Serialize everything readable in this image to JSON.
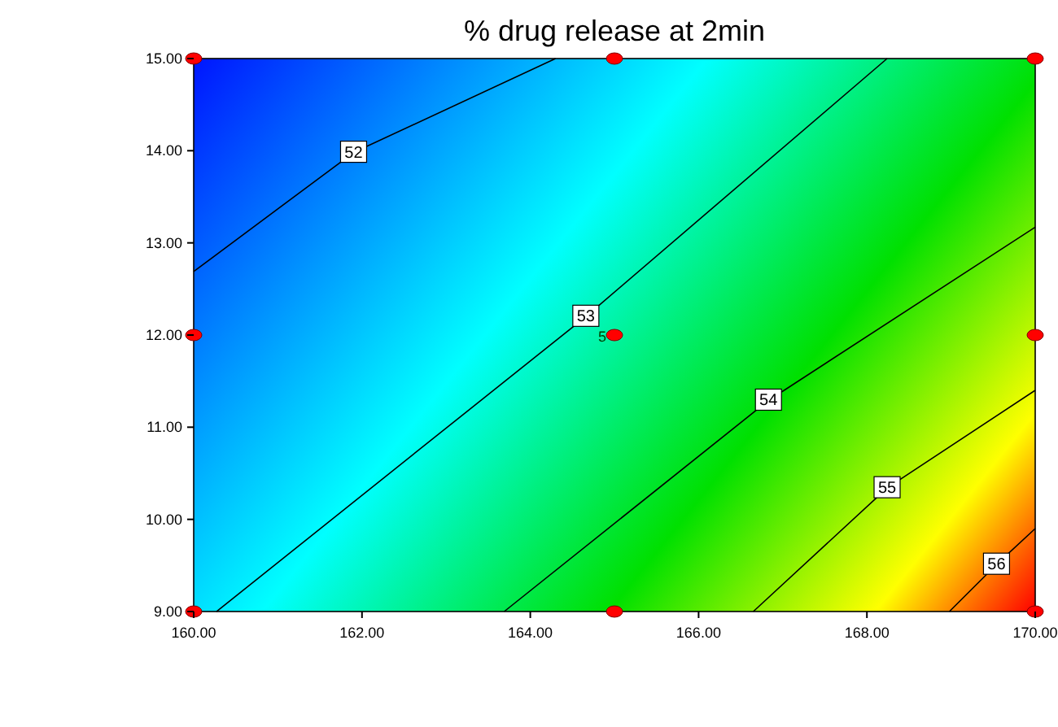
{
  "chart_data": {
    "type": "line",
    "title": "% drug release at 2min",
    "xlim": [
      160,
      170
    ],
    "ylim": [
      9,
      15
    ],
    "xticks": [
      {
        "value": 160,
        "label": "160.00"
      },
      {
        "value": 162,
        "label": "162.00"
      },
      {
        "value": 164,
        "label": "164.00"
      },
      {
        "value": 166,
        "label": "166.00"
      },
      {
        "value": 168,
        "label": "168.00"
      },
      {
        "value": 170,
        "label": "170.00"
      }
    ],
    "yticks": [
      {
        "value": 9,
        "label": "9.00"
      },
      {
        "value": 10,
        "label": "10.00"
      },
      {
        "value": 11,
        "label": "11.00"
      },
      {
        "value": 12,
        "label": "12.00"
      },
      {
        "value": 13,
        "label": "13.00"
      },
      {
        "value": 14,
        "label": "14.00"
      },
      {
        "value": 15,
        "label": "15.00"
      }
    ],
    "grid": false,
    "line_style": "solid",
    "series": [
      {
        "name": "52",
        "color": "#000000",
        "x": [
          160,
          161.9,
          164.3
        ],
        "values": [
          12.69,
          13.98,
          15
        ]
      },
      {
        "name": "53",
        "color": "#000000",
        "x": [
          160.27,
          164.66,
          168.24
        ],
        "values": [
          9,
          12.2,
          15
        ]
      },
      {
        "name": "54",
        "color": "#000000",
        "x": [
          163.69,
          166.83,
          170
        ],
        "values": [
          9,
          11.29,
          13.17
        ]
      },
      {
        "name": "55",
        "color": "#000000",
        "x": [
          166.65,
          168.24,
          170
        ],
        "values": [
          9,
          10.34,
          11.4
        ]
      },
      {
        "name": "56",
        "color": "#000000",
        "x": [
          168.98,
          169.54,
          170
        ],
        "values": [
          9,
          9.51,
          9.9
        ]
      },
      {
        "type": "scatter",
        "marker": "circle",
        "color": "#ff0000",
        "x": [
          160,
          160,
          160,
          165,
          165,
          165,
          170,
          170,
          170
        ],
        "values": [
          9,
          12,
          15,
          9,
          12,
          15,
          9,
          12,
          15
        ]
      }
    ],
    "annotations": [
      {
        "text": "5",
        "x": 165,
        "y": 12
      }
    ]
  }
}
